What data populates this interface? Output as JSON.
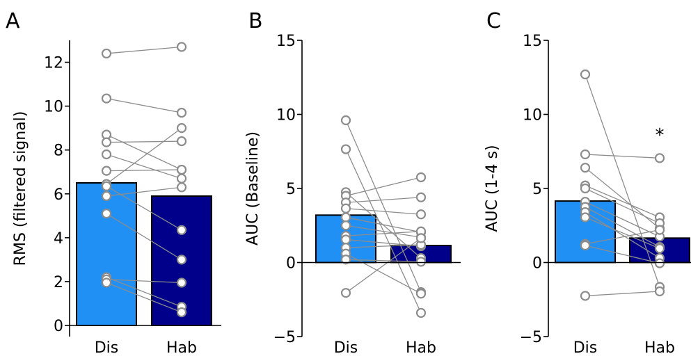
{
  "colors": {
    "dis_bar": "#2190f5",
    "hab_bar": "#00008a",
    "points": "#8c8c8c",
    "axis": "#000000"
  },
  "chart_data": [
    {
      "panel": "A",
      "type": "bar",
      "categories": [
        "Dis",
        "Hab"
      ],
      "values": [
        6.5,
        5.9
      ],
      "ylabel": "RMS (filtered signal)",
      "ylim": [
        0,
        13
      ],
      "yticks": [
        0,
        2,
        4,
        6,
        8,
        10,
        12
      ],
      "annotation": "",
      "paired_points": [
        [
          12.4,
          12.7
        ],
        [
          10.35,
          9.7
        ],
        [
          8.7,
          7.1
        ],
        [
          8.35,
          8.4
        ],
        [
          7.8,
          6.7
        ],
        [
          7.05,
          7.1
        ],
        [
          6.45,
          9.0
        ],
        [
          6.35,
          4.35
        ],
        [
          5.9,
          6.3
        ],
        [
          5.1,
          3.0
        ],
        [
          2.2,
          0.85
        ],
        [
          2.1,
          1.95
        ],
        [
          1.95,
          0.6
        ]
      ]
    },
    {
      "panel": "B",
      "type": "bar",
      "categories": [
        "Dis",
        "Hab"
      ],
      "values": [
        3.2,
        1.15
      ],
      "ylabel": "AUC (Baseline)",
      "ylim": [
        -5,
        15
      ],
      "yticks": [
        -5,
        0,
        5,
        10,
        15
      ],
      "annotation": "",
      "paired_points": [
        [
          9.6,
          -2.0
        ],
        [
          7.65,
          -3.4
        ],
        [
          4.75,
          0.3
        ],
        [
          4.5,
          5.75
        ],
        [
          4.05,
          4.4
        ],
        [
          3.65,
          3.25
        ],
        [
          3.05,
          2.05
        ],
        [
          2.5,
          1.7
        ],
        [
          1.8,
          2.1
        ],
        [
          1.55,
          1.1
        ],
        [
          1.0,
          1.2
        ],
        [
          0.6,
          -2.1
        ],
        [
          0.2,
          0.05
        ],
        [
          -2.05,
          1.65
        ]
      ]
    },
    {
      "panel": "C",
      "type": "bar",
      "categories": [
        "Dis",
        "Hab"
      ],
      "values": [
        4.15,
        1.65
      ],
      "ylabel": "AUC (1-4 s)",
      "ylim": [
        -5,
        15
      ],
      "yticks": [
        -5,
        0,
        5,
        10,
        15
      ],
      "annotation": "*",
      "paired_points": [
        [
          12.7,
          -1.65
        ],
        [
          7.3,
          7.05
        ],
        [
          6.4,
          2.3
        ],
        [
          5.2,
          3.05
        ],
        [
          5.0,
          2.65
        ],
        [
          4.1,
          1.75
        ],
        [
          3.75,
          1.05
        ],
        [
          3.4,
          0.3
        ],
        [
          3.05,
          0.95
        ],
        [
          1.25,
          2.2
        ],
        [
          1.15,
          -0.05
        ],
        [
          -2.25,
          -1.95
        ]
      ]
    }
  ]
}
